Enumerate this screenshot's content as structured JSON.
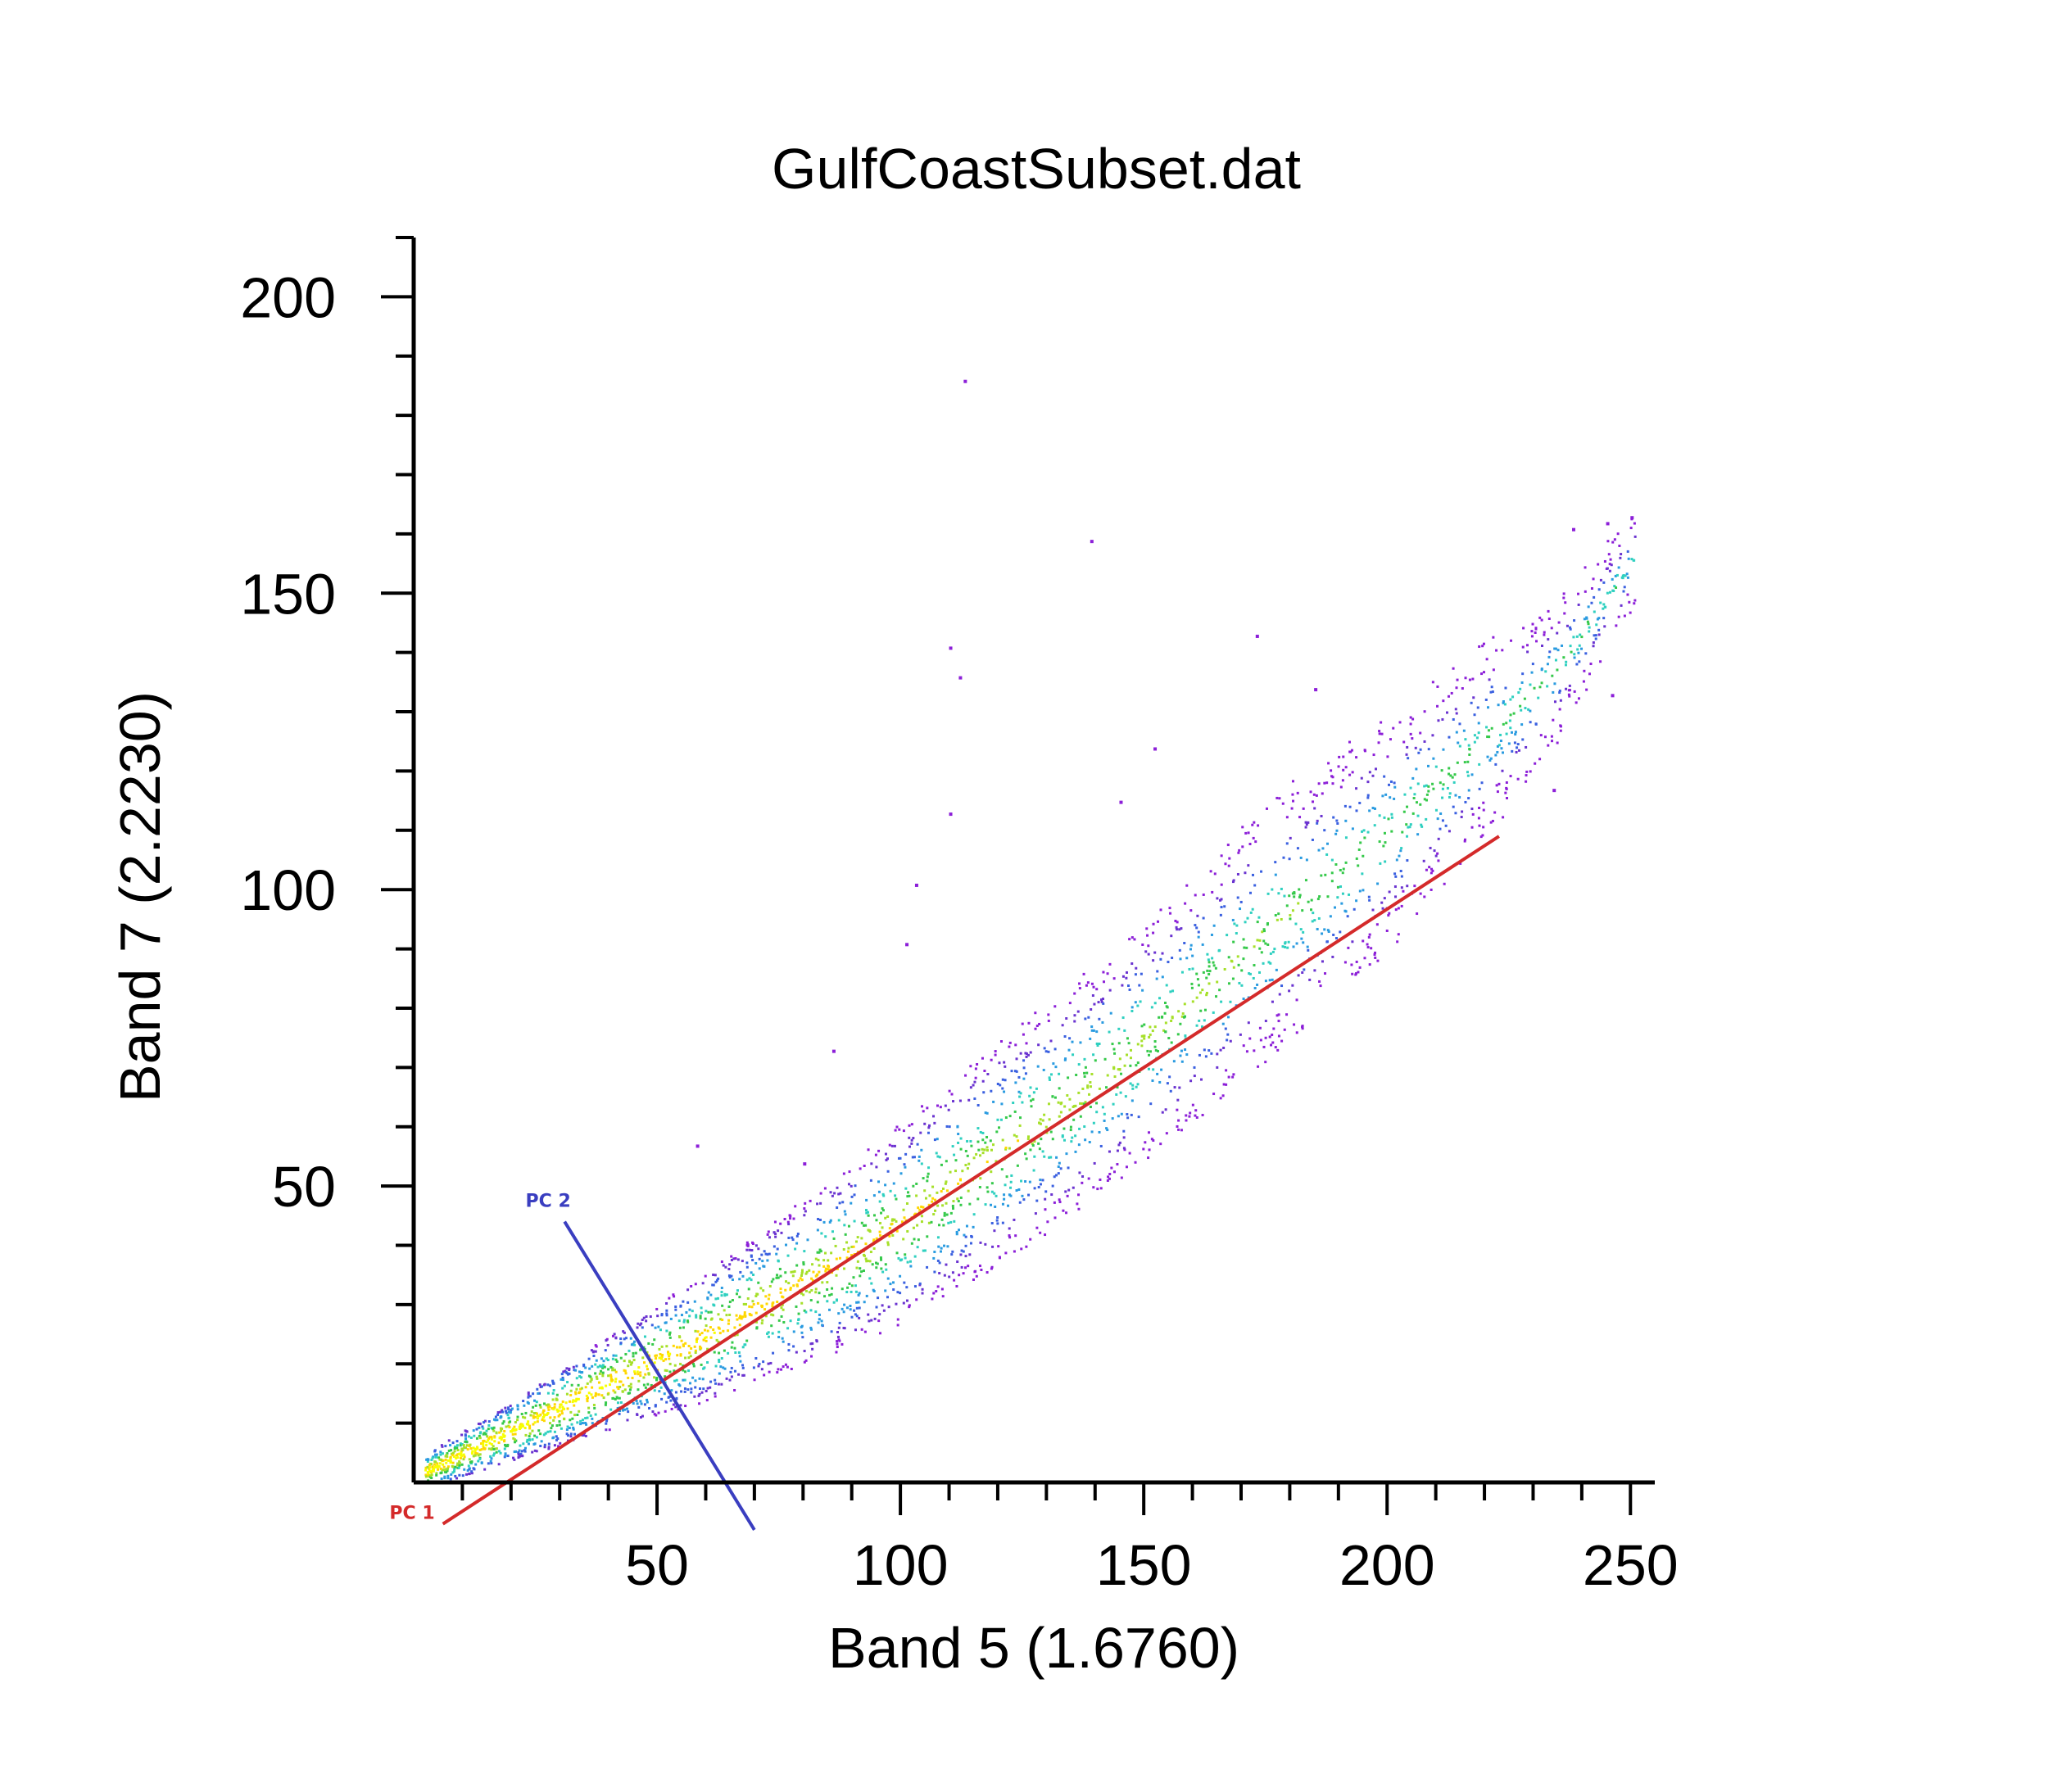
{
  "chart_data": {
    "type": "scatter",
    "title": "GulfCoastSubset.dat",
    "xlabel": "Band 5 (1.6760)",
    "ylabel": "Band 7 (2.2230)",
    "xlim": [
      0,
      255
    ],
    "ylim": [
      0,
      210
    ],
    "x_ticks": [
      50,
      100,
      150,
      200,
      250
    ],
    "y_ticks": [
      50,
      100,
      150,
      200
    ],
    "x_tick_labels": [
      "50",
      "100",
      "150",
      "200",
      "250"
    ],
    "y_tick_labels": [
      "50",
      "100",
      "150",
      "200"
    ],
    "x_minor_step": 10,
    "y_minor_step": 10,
    "grid": false,
    "legend": "none",
    "density_colormap": [
      "#f7ff00",
      "#ffd700",
      "#a6e02a",
      "#35c94a",
      "#2fd0c0",
      "#2a9be0",
      "#3a60e0",
      "#6a33d0",
      "#8c1fd8"
    ],
    "density_band": [
      {
        "x": 2,
        "center": 2,
        "spread": 3
      },
      {
        "x": 20,
        "center": 9,
        "spread": 5
      },
      {
        "x": 40,
        "center": 17,
        "spread": 8
      },
      {
        "x": 60,
        "center": 25,
        "spread": 11
      },
      {
        "x": 80,
        "center": 34,
        "spread": 14
      },
      {
        "x": 100,
        "center": 44,
        "spread": 17
      },
      {
        "x": 120,
        "center": 56,
        "spread": 19
      },
      {
        "x": 140,
        "center": 68,
        "spread": 20
      },
      {
        "x": 160,
        "center": 82,
        "spread": 21
      },
      {
        "x": 180,
        "center": 97,
        "spread": 22
      },
      {
        "x": 200,
        "center": 110,
        "spread": 20
      },
      {
        "x": 220,
        "center": 126,
        "spread": 17
      },
      {
        "x": 235,
        "center": 138,
        "spread": 12
      },
      {
        "x": 250,
        "center": 156,
        "spread": 8
      }
    ],
    "outliers": [
      {
        "x": 113,
        "y": 186
      },
      {
        "x": 139,
        "y": 159
      },
      {
        "x": 110,
        "y": 141
      },
      {
        "x": 112,
        "y": 136
      },
      {
        "x": 110,
        "y": 113
      },
      {
        "x": 103,
        "y": 101
      },
      {
        "x": 101,
        "y": 91
      },
      {
        "x": 173,
        "y": 143
      },
      {
        "x": 185,
        "y": 134
      },
      {
        "x": 245,
        "y": 162
      },
      {
        "x": 250,
        "y": 163
      },
      {
        "x": 238,
        "y": 161
      },
      {
        "x": 246,
        "y": 133
      },
      {
        "x": 234,
        "y": 117
      },
      {
        "x": 152,
        "y": 124
      },
      {
        "x": 145,
        "y": 115
      },
      {
        "x": 86,
        "y": 73
      },
      {
        "x": 80,
        "y": 54
      },
      {
        "x": 58,
        "y": 57
      }
    ],
    "principal_components": [
      {
        "name": "PC 1",
        "color": "#d42a2a",
        "x1": 6,
        "y1": -7,
        "x2": 223,
        "y2": 109
      },
      {
        "name": "PC 2",
        "color": "#3a3ec0",
        "x1": 31,
        "y1": 44,
        "x2": 70,
        "y2": -8
      }
    ]
  }
}
